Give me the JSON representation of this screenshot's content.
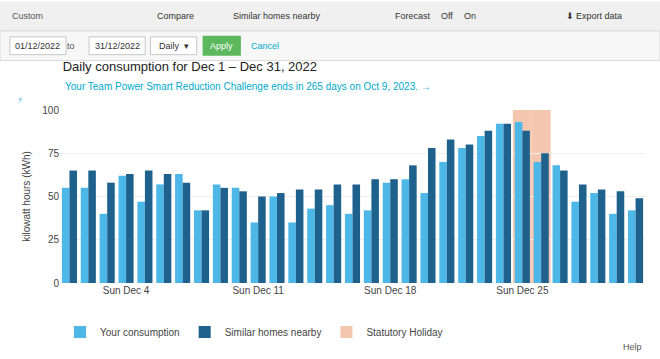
{
  "chart_data": {
    "type": "bar",
    "title": "Daily consumption for Dec 1 – Dec 31, 2022",
    "subtitle": "Your Team Power Smart Reduction Challenge ends in 265 days on Oct 9, 2023. →",
    "ylabel": "kilowatt hours (kWh)",
    "categories": [
      null,
      null,
      null,
      "Sun Dec 4",
      null,
      null,
      null,
      null,
      null,
      null,
      "Sun Dec 11",
      null,
      null,
      null,
      null,
      null,
      null,
      "Sun Dec 18",
      null,
      null,
      null,
      null,
      null,
      null,
      "Sun Dec 25",
      null,
      null,
      null,
      null,
      null,
      null
    ],
    "series": [
      {
        "name": "Your consumption",
        "color": "#4db8e8",
        "values": [
          55,
          55,
          40,
          62,
          47,
          57,
          63,
          42,
          57,
          55,
          35,
          50,
          35,
          43,
          45,
          40,
          42,
          58,
          60,
          52,
          70,
          78,
          85,
          92,
          93,
          70,
          68,
          47,
          52,
          40,
          42
        ]
      },
      {
        "name": "Similar homes nearby",
        "color": "#1f618d",
        "values": [
          65,
          65,
          58,
          63,
          65,
          63,
          58,
          42,
          55,
          53,
          50,
          52,
          54,
          54,
          57,
          57,
          60,
          60,
          68,
          78,
          83,
          80,
          88,
          92,
          88,
          75,
          65,
          57,
          54,
          53,
          49
        ]
      }
    ],
    "highlight": {
      "name": "Statutory Holiday",
      "color": "#f5c6b0",
      "positions": [
        24,
        25
      ]
    },
    "ylim": [
      0,
      100
    ],
    "yticks": [
      0,
      25,
      50,
      75,
      100
    ],
    "grid": true,
    "legend": "bottom",
    "annotations": [
      "Custom",
      "Compare",
      "Similar homes nearby",
      "Forecast",
      "Off",
      "On",
      "⬇ Export data",
      "01/12/2022",
      "to",
      "31/12/2022",
      "Daily  ▾",
      "Apply",
      "Cancel",
      "Help",
      "⚡"
    ]
  }
}
